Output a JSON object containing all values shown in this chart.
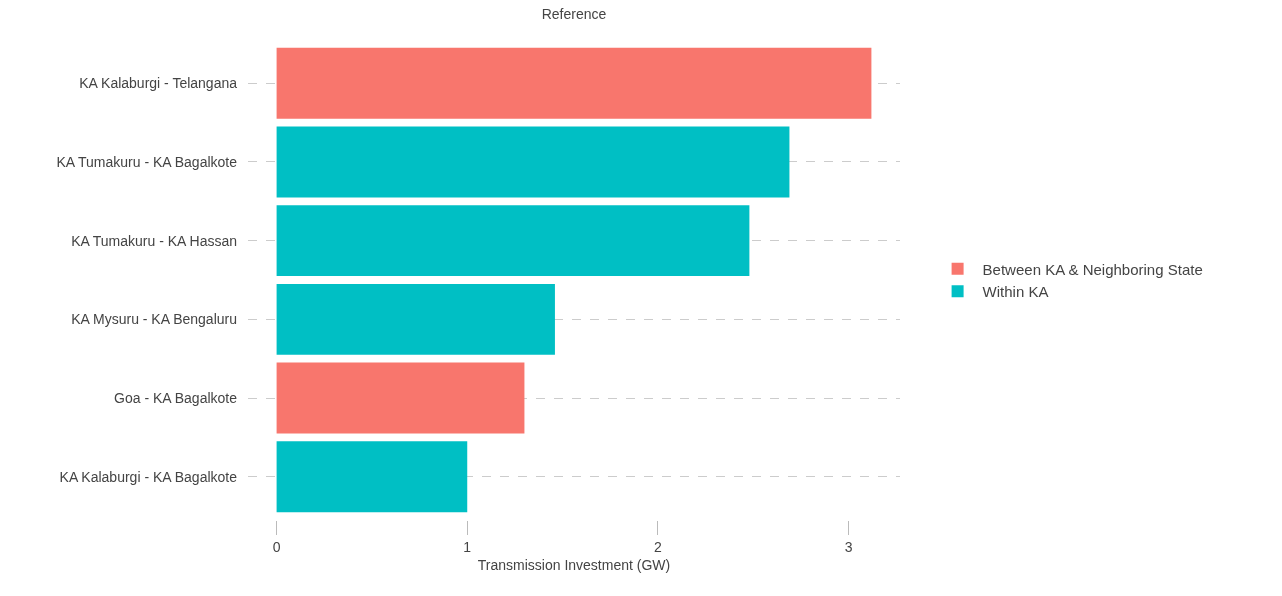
{
  "chart_data": {
    "type": "bar",
    "orientation": "horizontal",
    "title": "Reference",
    "xlabel": "Transmission Investment (GW)",
    "categories": [
      "KA Kalaburgi - Telangana",
      "KA Tumakuru - KA Bagalkote",
      "KA Tumakuru - KA Hassan",
      "KA Mysuru - KA Bengaluru",
      "Goa - KA Bagalkote",
      "KA Kalaburgi - KA Bagalkote"
    ],
    "series": [
      {
        "name": "Between KA & Neighboring State",
        "color": "#f8766d",
        "values": [
          3.12,
          null,
          null,
          null,
          1.3,
          null
        ]
      },
      {
        "name": "Within KA",
        "color": "#00bfc4",
        "values": [
          null,
          2.69,
          2.48,
          1.46,
          null,
          1.0
        ]
      }
    ],
    "xlim": [
      -0.15,
      3.27
    ],
    "xticks": [
      0,
      1,
      2,
      3
    ],
    "grid": "y",
    "legend": "right"
  }
}
